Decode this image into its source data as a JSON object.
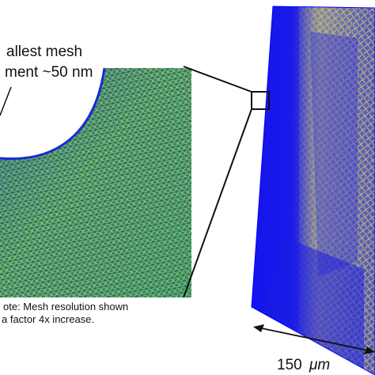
{
  "labels": {
    "mesh_line1": "allest mesh",
    "mesh_line2": "ment ~50 nm",
    "note_line1": "ote: Mesh resolution shown",
    "note_line2": "a factor 4x increase.",
    "dimension_value": "150",
    "dimension_unit": "μm"
  },
  "colors": {
    "mesh_blue": "#1a1adb",
    "mesh_green": "#2f9a6a",
    "mesh_yellow": "#d8d84a",
    "edge_blue": "#0000ff"
  }
}
